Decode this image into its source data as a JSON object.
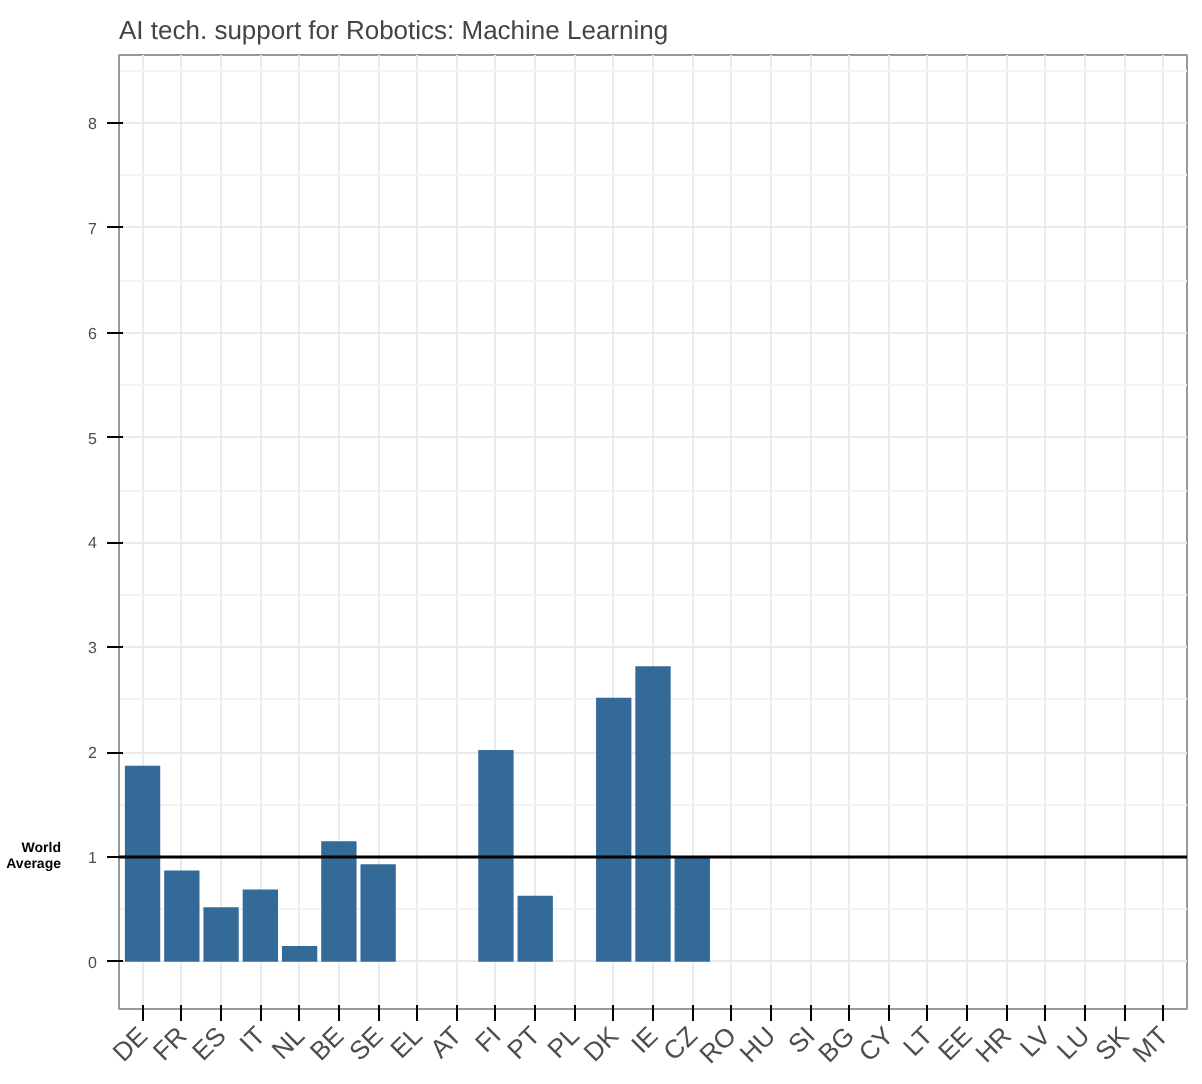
{
  "chart_data": {
    "type": "bar",
    "title": "AI tech. support for Robotics: Machine Learning",
    "categories": [
      "DE",
      "FR",
      "ES",
      "IT",
      "NL",
      "BE",
      "SE",
      "EL",
      "AT",
      "FI",
      "PT",
      "PL",
      "DK",
      "IE",
      "CZ",
      "RO",
      "HU",
      "SI",
      "BG",
      "CY",
      "LT",
      "EE",
      "HR",
      "LV",
      "LU",
      "SK",
      "MT"
    ],
    "values": [
      1.87,
      0.87,
      0.52,
      0.69,
      0.15,
      1.15,
      0.93,
      null,
      null,
      2.02,
      0.63,
      null,
      2.52,
      2.82,
      1.01,
      null,
      null,
      null,
      null,
      null,
      null,
      null,
      null,
      null,
      null,
      null,
      null
    ],
    "color": "#336a98",
    "ylim": [
      -0.45,
      8.65
    ],
    "yticks": [
      0,
      1,
      2,
      3,
      4,
      5,
      6,
      7,
      8
    ],
    "grid": true,
    "ref_lines": [
      {
        "axis": "y",
        "value": 1,
        "label": "World\nAverage",
        "color": "#000000"
      }
    ]
  }
}
